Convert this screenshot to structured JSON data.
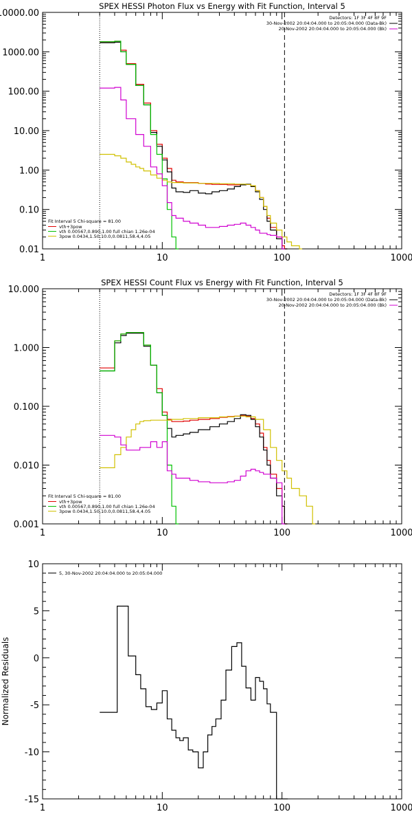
{
  "chart_data": [
    {
      "type": "line",
      "title": "SPEX HESSI Photon Flux vs Energy with Fit Function, Interval 5",
      "xscale": "log",
      "yscale": "log",
      "xlim": [
        1,
        1000
      ],
      "ylim": [
        0.01,
        10000
      ],
      "xticks": [
        {
          "v": 1,
          "t": "1"
        },
        {
          "v": 10,
          "t": "10"
        },
        {
          "v": 100,
          "t": "100"
        },
        {
          "v": 1000,
          "t": "1000"
        }
      ],
      "yticks": [
        {
          "v": 0.01,
          "t": "0.01"
        },
        {
          "v": 0.1,
          "t": "0.10"
        },
        {
          "v": 1,
          "t": "1.00"
        },
        {
          "v": 10,
          "t": "10.00"
        },
        {
          "v": 100,
          "t": "100.00"
        },
        {
          "v": 1000,
          "t": "1000.00"
        },
        {
          "v": 10000,
          "t": "10000.00"
        }
      ],
      "vlines": [
        {
          "x": 3,
          "style": "dotted"
        },
        {
          "x": 105,
          "style": "dashed"
        }
      ],
      "header_text": [
        "Detectors: 1F 3F 4F 8F 9F",
        "30-Nov-2002 20:04:04.000 to 20:05:04.000 (Data-Bk)",
        "20-Nov-2002 20:04:04.000 to 20:05:04.000 (Bk)"
      ],
      "legend_title": "Fit Interval  5   Chi-square =  81.00",
      "legend_entries": [
        "vth+3pow",
        "vth 0.00567,0.890,1.00  full chian 1.26e-04",
        "3pow 0.0434,1.50,10.0,0.0811,58.4,4.05"
      ],
      "series": [
        {
          "name": "vth+3pow",
          "color": "#e00000",
          "x": [
            3,
            3.5,
            4,
            4.5,
            5,
            5.5,
            6,
            6.5,
            7,
            8,
            9,
            10,
            11,
            12,
            13,
            15,
            17,
            20,
            23,
            26,
            30,
            35,
            40,
            45,
            50,
            55,
            60,
            65,
            70,
            75,
            80,
            90,
            100,
            105
          ],
          "y": [
            1800,
            1800,
            1850,
            1100,
            500,
            500,
            150,
            150,
            50,
            10,
            4.5,
            2,
            1.1,
            0.55,
            0.5,
            0.48,
            0.48,
            0.46,
            0.44,
            0.43,
            0.43,
            0.42,
            0.42,
            0.42,
            0.43,
            0.4,
            0.3,
            0.2,
            0.12,
            0.06,
            0.035,
            0.02,
            0.012,
            0.01
          ]
        },
        {
          "name": "data",
          "color": "#000000",
          "x": [
            3,
            3.5,
            4,
            4.5,
            5,
            5.5,
            6,
            6.5,
            7,
            8,
            9,
            10,
            11,
            12,
            13,
            15,
            17,
            20,
            23,
            26,
            30,
            35,
            40,
            45,
            50,
            55,
            60,
            65,
            70,
            75,
            80,
            90,
            100,
            105
          ],
          "y": [
            1700,
            1700,
            1750,
            1000,
            480,
            480,
            140,
            140,
            45,
            9,
            4,
            1.8,
            0.9,
            0.35,
            0.28,
            0.27,
            0.3,
            0.26,
            0.25,
            0.28,
            0.3,
            0.33,
            0.38,
            0.42,
            0.44,
            0.38,
            0.28,
            0.18,
            0.1,
            0.05,
            0.03,
            0.018,
            0.01,
            0.01
          ]
        },
        {
          "name": "vth",
          "color": "#00c000",
          "x": [
            3,
            3.5,
            4,
            4.5,
            5,
            5.5,
            6,
            6.5,
            7,
            8,
            9,
            10,
            11,
            12,
            13
          ],
          "y": [
            1800,
            1800,
            1850,
            1000,
            480,
            480,
            140,
            140,
            45,
            8,
            2.5,
            0.6,
            0.1,
            0.02,
            0.01
          ]
        },
        {
          "name": "3pow",
          "color": "#d0c000",
          "x": [
            3,
            3.5,
            4,
            4.5,
            5,
            5.5,
            6,
            6.5,
            7,
            8,
            9,
            10,
            11,
            12,
            15,
            20,
            30,
            40,
            50,
            55,
            60,
            65,
            70,
            75,
            80,
            90,
            100,
            110,
            120,
            140
          ],
          "y": [
            2.5,
            2.5,
            2.3,
            2.0,
            1.6,
            1.4,
            1.2,
            1.1,
            0.95,
            0.75,
            0.62,
            0.55,
            0.5,
            0.48,
            0.47,
            0.46,
            0.45,
            0.44,
            0.43,
            0.4,
            0.3,
            0.2,
            0.12,
            0.07,
            0.045,
            0.03,
            0.02,
            0.015,
            0.012,
            0.01
          ]
        },
        {
          "name": "bk",
          "color": "#d000d0",
          "x": [
            3,
            3.5,
            4,
            4.5,
            5,
            5.5,
            6,
            6.5,
            7,
            8,
            9,
            10,
            11,
            12,
            13,
            15,
            17,
            20,
            23,
            26,
            30,
            35,
            40,
            45,
            50,
            55,
            60,
            65,
            70,
            75,
            80,
            90,
            100
          ],
          "y": [
            120,
            120,
            125,
            60,
            20,
            20,
            8,
            8,
            4,
            1.2,
            0.8,
            0.4,
            0.15,
            0.07,
            0.06,
            0.05,
            0.045,
            0.04,
            0.035,
            0.035,
            0.037,
            0.04,
            0.042,
            0.045,
            0.04,
            0.035,
            0.03,
            0.025,
            0.025,
            0.023,
            0.022,
            0.02,
            0.01
          ]
        }
      ]
    },
    {
      "type": "line",
      "title": "SPEX HESSI Count Flux vs Energy with Fit Function, Interval 5",
      "xscale": "log",
      "yscale": "log",
      "xlim": [
        1,
        1000
      ],
      "ylim": [
        0.001,
        10
      ],
      "xticks": [
        {
          "v": 1,
          "t": "1"
        },
        {
          "v": 10,
          "t": "10"
        },
        {
          "v": 100,
          "t": "100"
        },
        {
          "v": 1000,
          "t": "1000"
        }
      ],
      "yticks": [
        {
          "v": 0.001,
          "t": "0.001"
        },
        {
          "v": 0.01,
          "t": "0.010"
        },
        {
          "v": 0.1,
          "t": "0.100"
        },
        {
          "v": 1,
          "t": "1.000"
        },
        {
          "v": 10,
          "t": "10.000"
        }
      ],
      "vlines": [
        {
          "x": 3,
          "style": "dotted"
        },
        {
          "x": 105,
          "style": "dashed"
        }
      ],
      "header_text": [
        "Detectors: 1F 3F 4F 8F 9F",
        "30-Nov-2002 20:04:04.000 to 20:05:04.000 (Data-Bk)",
        "20-Nov-2002 20:04:04.000 to 20:05:04.000 (Bk)"
      ],
      "legend_title": "Fit Interval  5   Chi-square =  81.00",
      "legend_entries": [
        "vth+3pow",
        "vth 0.00567,0.890,1.00  full chian 1.26e-04",
        "3pow 0.0434,1.50,10.0,0.0811,58.4,4.05"
      ],
      "series": [
        {
          "name": "vth+3pow",
          "color": "#e00000",
          "x": [
            3,
            3.5,
            4,
            4.5,
            5,
            5.5,
            6,
            6.5,
            7,
            8,
            9,
            10,
            11,
            12,
            13,
            15,
            17,
            20,
            25,
            30,
            35,
            40,
            45,
            50,
            55,
            60,
            65,
            70,
            75,
            80,
            90,
            100,
            105
          ],
          "y": [
            0.45,
            0.45,
            1.3,
            1.7,
            1.8,
            1.8,
            1.8,
            1.8,
            1.1,
            0.5,
            0.2,
            0.08,
            0.06,
            0.055,
            0.055,
            0.056,
            0.058,
            0.06,
            0.062,
            0.065,
            0.067,
            0.068,
            0.07,
            0.068,
            0.062,
            0.05,
            0.035,
            0.02,
            0.012,
            0.007,
            0.004,
            0.002,
            0.001
          ]
        },
        {
          "name": "data",
          "color": "#000000",
          "x": [
            3,
            3.5,
            4,
            4.5,
            5,
            5.5,
            6,
            6.5,
            7,
            8,
            9,
            10,
            11,
            12,
            13,
            15,
            17,
            20,
            25,
            30,
            35,
            40,
            45,
            50,
            55,
            60,
            65,
            70,
            75,
            80,
            90,
            100,
            105
          ],
          "y": [
            0.4,
            0.4,
            1.2,
            1.6,
            1.75,
            1.75,
            1.75,
            1.75,
            1.05,
            0.5,
            0.17,
            0.07,
            0.042,
            0.03,
            0.032,
            0.034,
            0.036,
            0.04,
            0.045,
            0.05,
            0.055,
            0.062,
            0.072,
            0.07,
            0.06,
            0.045,
            0.03,
            0.018,
            0.01,
            0.006,
            0.003,
            0.002,
            0.001
          ]
        },
        {
          "name": "vth",
          "color": "#00c000",
          "x": [
            3,
            3.5,
            4,
            4.5,
            5,
            5.5,
            6,
            6.5,
            7,
            8,
            9,
            10,
            11,
            12,
            13
          ],
          "y": [
            0.4,
            0.4,
            1.3,
            1.7,
            1.8,
            1.8,
            1.8,
            1.8,
            1.1,
            0.5,
            0.17,
            0.07,
            0.01,
            0.002,
            0.001
          ]
        },
        {
          "name": "3pow",
          "color": "#d0c000",
          "x": [
            3,
            3.5,
            4,
            4.5,
            5,
            5.5,
            6,
            6.5,
            7,
            8,
            9,
            10,
            12,
            15,
            20,
            30,
            40,
            50,
            60,
            70,
            80,
            90,
            100,
            110,
            120,
            140,
            160,
            180
          ],
          "y": [
            0.009,
            0.009,
            0.015,
            0.02,
            0.03,
            0.04,
            0.05,
            0.055,
            0.057,
            0.058,
            0.058,
            0.058,
            0.06,
            0.062,
            0.064,
            0.066,
            0.068,
            0.066,
            0.06,
            0.04,
            0.02,
            0.012,
            0.008,
            0.006,
            0.004,
            0.003,
            0.002,
            0.001
          ]
        },
        {
          "name": "bk",
          "color": "#d000d0",
          "x": [
            3,
            3.5,
            4,
            4.5,
            5,
            5.5,
            6,
            6.5,
            7,
            8,
            9,
            10,
            11,
            12,
            13,
            15,
            17,
            20,
            25,
            30,
            35,
            40,
            45,
            50,
            55,
            60,
            65,
            70,
            75,
            80,
            90,
            100
          ],
          "y": [
            0.032,
            0.032,
            0.03,
            0.022,
            0.018,
            0.018,
            0.018,
            0.02,
            0.02,
            0.025,
            0.02,
            0.025,
            0.008,
            0.007,
            0.006,
            0.006,
            0.0055,
            0.0052,
            0.005,
            0.005,
            0.0052,
            0.0055,
            0.0065,
            0.008,
            0.0085,
            0.008,
            0.0075,
            0.007,
            0.007,
            0.006,
            0.005,
            0.001
          ]
        }
      ]
    },
    {
      "type": "line",
      "title": "",
      "xscale": "log",
      "yscale": "linear",
      "xlim": [
        1,
        1000
      ],
      "ylim": [
        -15,
        10
      ],
      "ylabel": "Normalized Residuals",
      "xticks": [
        {
          "v": 1,
          "t": "1"
        },
        {
          "v": 10,
          "t": "10"
        },
        {
          "v": 100,
          "t": "100"
        },
        {
          "v": 1000,
          "t": "1000"
        }
      ],
      "yticks": [
        {
          "v": -15,
          "t": "-15"
        },
        {
          "v": -10,
          "t": "-10"
        },
        {
          "v": -5,
          "t": "-5"
        },
        {
          "v": 0,
          "t": "0"
        },
        {
          "v": 5,
          "t": "5"
        },
        {
          "v": 10,
          "t": "10"
        }
      ],
      "legend_entries": [
        "5, 30-Nov-2002 20:04:04.000 to 20:05:04.000"
      ],
      "series": [
        {
          "name": "5, 30-Nov-2002 20:04:04.000 to 20:05:04.000",
          "color": "#000000",
          "x": [
            3,
            4.2,
            5.2,
            6,
            6.6,
            7.3,
            8.1,
            9,
            10,
            11,
            12,
            13,
            14,
            15,
            16.5,
            18,
            20,
            22,
            24,
            26,
            28,
            31,
            34,
            38,
            42,
            46,
            50,
            55,
            60,
            65,
            70,
            75,
            80,
            90,
            100,
            106
          ],
          "y": [
            -5.8,
            5.5,
            0.2,
            -1.8,
            -3.3,
            -5.2,
            -5.5,
            -4.8,
            -3.5,
            -6.5,
            -7.7,
            -8.5,
            -8.8,
            -8.5,
            -9.8,
            -10,
            -11.7,
            -10,
            -8.2,
            -7.3,
            -6.5,
            -4.5,
            -1.3,
            1.2,
            1.6,
            -0.9,
            -3.2,
            -4.5,
            -2.1,
            -2.5,
            -3.3,
            -4.9,
            -5.8,
            -15,
            -15,
            -15
          ]
        }
      ]
    }
  ]
}
